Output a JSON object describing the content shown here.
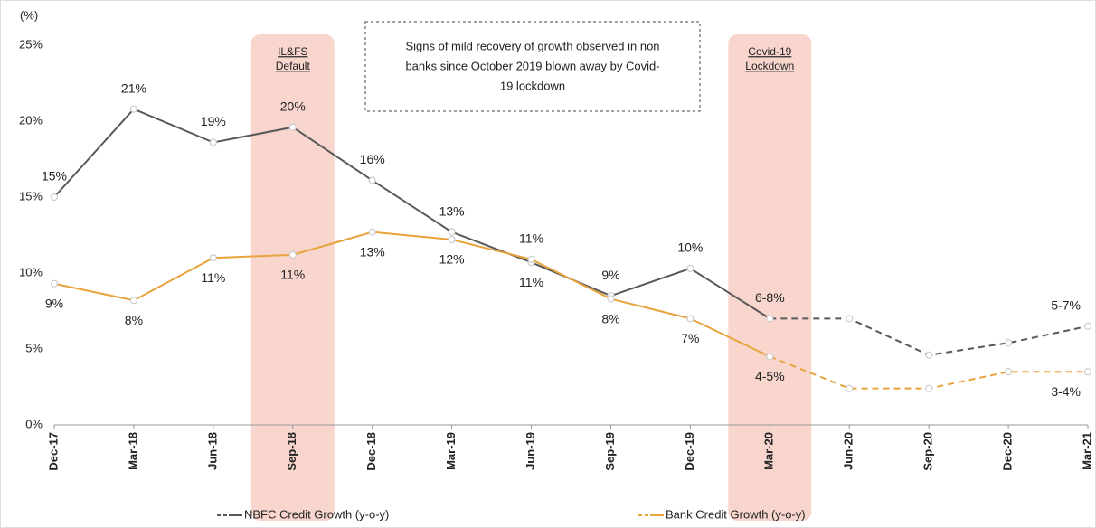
{
  "chart_data": {
    "type": "line",
    "y_label": "(%)",
    "categories": [
      "Dec-17",
      "Mar-18",
      "Jun-18",
      "Sep-18",
      "Dec-18",
      "Mar-19",
      "Jun-19",
      "Sep-19",
      "Dec-19",
      "Mar-20",
      "Jun-20",
      "Sep-20",
      "Dec-20",
      "Mar-21"
    ],
    "forecast_start": "Mar-20",
    "series": [
      {
        "name": "NBFC Credit Growth (y-o-y)",
        "color": "#595959",
        "values": [
          15.0,
          20.8,
          18.6,
          19.6,
          16.1,
          12.7,
          10.7,
          8.5,
          10.3,
          7.0,
          7.0,
          4.6,
          5.4,
          6.5
        ],
        "value_labels": [
          "15%",
          "21%",
          "19%",
          "20%",
          "16%",
          "13%",
          "11%",
          "9%",
          "10%",
          "6-8%",
          null,
          null,
          null,
          "5-7%"
        ]
      },
      {
        "name": "Bank Credit Growth (y-o-y)",
        "color": "#e8a33d",
        "values": [
          9.3,
          8.2,
          11.0,
          11.2,
          12.7,
          12.2,
          10.9,
          8.3,
          7.0,
          4.5,
          2.4,
          2.4,
          3.5,
          3.5
        ],
        "value_labels": [
          "9%",
          "8%",
          "11%",
          "11%",
          "13%",
          "12%",
          "11%",
          "8%",
          "7%",
          "4-5%",
          null,
          null,
          null,
          "3-4%"
        ]
      }
    ],
    "ylim": [
      0,
      25
    ],
    "yticks": [
      {
        "value": 0,
        "label": "0%"
      },
      {
        "value": 5,
        "label": "5%"
      },
      {
        "value": 10,
        "label": "10%"
      },
      {
        "value": 15,
        "label": "15%"
      },
      {
        "value": 20,
        "label": "20%"
      },
      {
        "value": 25,
        "label": "25%"
      }
    ],
    "highlights": [
      {
        "category": "Sep-18",
        "label": [
          "IL&FS",
          "Default"
        ]
      },
      {
        "category": "Mar-20",
        "label": [
          "Covid-19",
          "Lockdown"
        ]
      }
    ],
    "note": [
      "Signs of mild recovery of growth observed  in non",
      "banks since October 2019 blown away by Covid-",
      "19 lockdown"
    ]
  }
}
